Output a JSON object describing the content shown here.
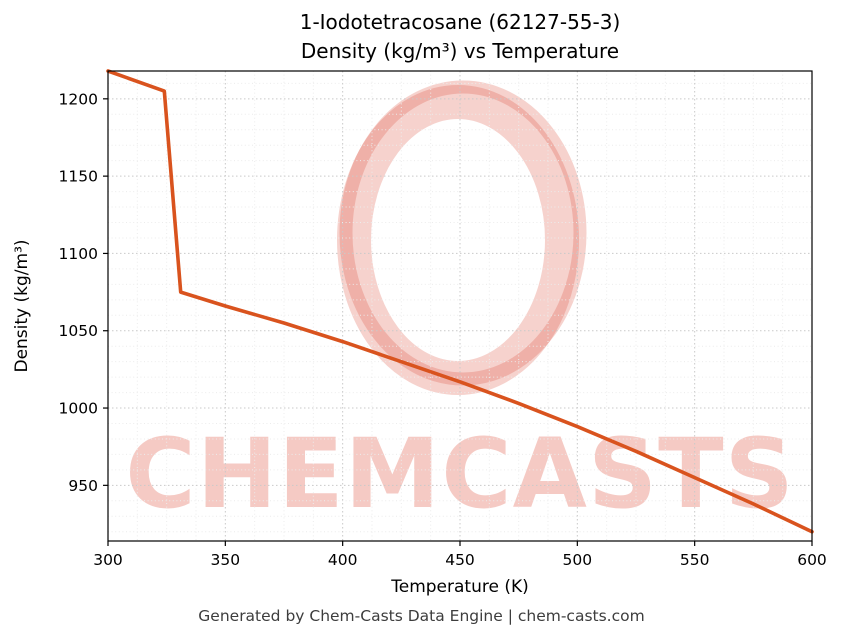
{
  "header": {
    "title_line1": "1-Iodotetracosane (62127-55-3)",
    "title_line2": "Density (kg/m³) vs Temperature"
  },
  "footer": {
    "text": "Generated by Chem-Casts Data Engine | chem-casts.com"
  },
  "watermark": {
    "text": "CHEMCASTS",
    "text_color": "rgba(222, 80, 60, 0.30)",
    "logo_color": "rgba(222, 80, 60, 0.26)"
  },
  "chart_data": {
    "type": "line",
    "title": "1-Iodotetracosane (62127-55-3) — Density (kg/m³) vs Temperature",
    "xlabel": "Temperature (K)",
    "ylabel": "Density (kg/m³)",
    "xlim": [
      300,
      600
    ],
    "ylim": [
      914,
      1218
    ],
    "xticks": [
      300,
      350,
      400,
      450,
      500,
      550,
      600
    ],
    "yticks": [
      950,
      1000,
      1050,
      1100,
      1150,
      1200
    ],
    "x_minor_step": 12.5,
    "y_minor_step": 10,
    "grid": true,
    "legend": "none",
    "line_color": "#d9531e",
    "grid_major_color": "#c9c9c9",
    "grid_minor_color": "#ececec",
    "series": [
      {
        "name": "density",
        "x": [
          300,
          324,
          331,
          350,
          375,
          400,
          425,
          450,
          475,
          500,
          525,
          550,
          575,
          600
        ],
        "y": [
          1218,
          1205,
          1075,
          1066,
          1055,
          1043,
          1030,
          1017,
          1003,
          988,
          972,
          955,
          938,
          920
        ]
      }
    ]
  }
}
